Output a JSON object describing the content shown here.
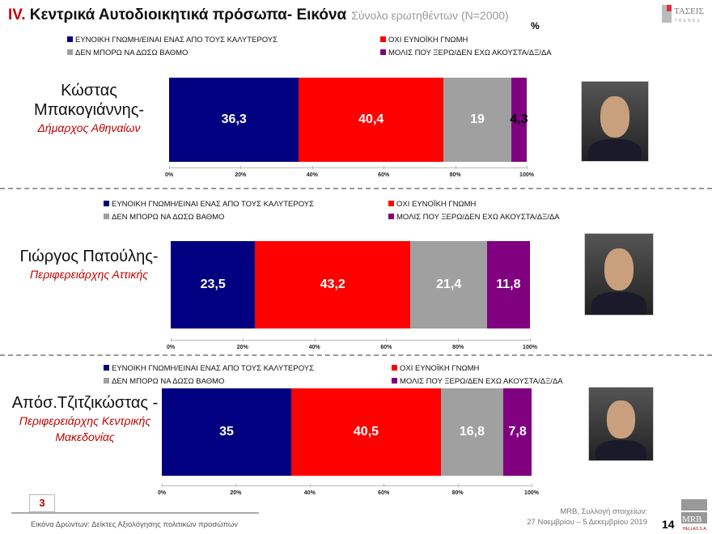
{
  "header": {
    "number": "IV.",
    "title": "Κεντρικά Αυτοδιοικητικά πρόσωπα- Εικόνα",
    "subtitle": "Σύνολο ερωτηθέντων (Ν=2000)",
    "logo_text": "ΤΑΣΕΙΣ",
    "logo_sub": "TRENDS",
    "unit": "%"
  },
  "footer": {
    "box_number": "3",
    "left_text": "Εικόνα Δρώντων: Δείκτες Αξιολόγησης πολιτικών προσώπων",
    "source_line1": "MRB, Συλλογή στοιχείων:",
    "source_line2": "27 Νοεμβρίου – 5 Δεκεμβρίου 2019",
    "page": "14",
    "mrb_logo": "MRB",
    "mrb_sub": "HELLAS S.A."
  },
  "colors": {
    "favorable": "#000080",
    "unfavorable": "#ff0000",
    "cannot_rate": "#a0a0a0",
    "barely_know": "#800080"
  },
  "chart_data": [
    {
      "type": "bar",
      "orientation": "horizontal-stacked",
      "person": "Κώστας Μπακογιάννης-",
      "role": "Δήμαρχος Αθηναίων",
      "legend": [
        "ΕΥΝΟΙΚΗ ΓΝΩΜΗ/ΕΙΝΑΙ ΕΝΑΣ ΑΠΟ ΤΟΥΣ ΚΑΛΥΤΕΡΟΥΣ",
        "ΟΧΙ ΕΥΝΟΪΚΗ ΓΝΩΜΗ",
        "ΔΕΝ ΜΠΟΡΩ ΝΑ ΔΩΣΩ ΒΑΘΜΟ",
        "ΜΟΛΙΣ ΠΟΥ ΞΕΡΩ/ΔΕΝ ΕΧΩ ΑΚΟΥΣΤΑ/ΔΞ/ΔΑ"
      ],
      "values": [
        36.3,
        40.4,
        19,
        4.3
      ],
      "labels": [
        "36,3",
        "40,4",
        "19",
        "4,3"
      ],
      "ticks": [
        "0%",
        "20%",
        "40%",
        "60%",
        "80%",
        "100%"
      ],
      "xlim": [
        0,
        100
      ]
    },
    {
      "type": "bar",
      "orientation": "horizontal-stacked",
      "person": "Γιώργος Πατούλης-",
      "role": "Περιφερειάρχης Αττικής",
      "legend": [
        "ΕΥΝΟΙΚΗ ΓΝΩΜΗ/ΕΙΝΑΙ ΕΝΑΣ ΑΠΟ ΤΟΥΣ ΚΑΛΥΤΕΡΟΥΣ",
        "ΟΧΙ ΕΥΝΟΪΚΗ ΓΝΩΜΗ",
        "ΔΕΝ ΜΠΟΡΩ ΝΑ ΔΩΣΩ ΒΑΘΜΟ",
        "ΜΟΛΙΣ ΠΟΥ ΞΕΡΩ/ΔΕΝ ΕΧΩ ΑΚΟΥΣΤΑ/ΔΞ/ΔΑ"
      ],
      "values": [
        23.5,
        43.2,
        21.4,
        11.8
      ],
      "labels": [
        "23,5",
        "43,2",
        "21,4",
        "11,8"
      ],
      "ticks": [
        "0%",
        "20%",
        "40%",
        "60%",
        "80%",
        "100%"
      ],
      "xlim": [
        0,
        100
      ]
    },
    {
      "type": "bar",
      "orientation": "horizontal-stacked",
      "person": "Απόσ.Τζιτζικώστας -",
      "role": "Περιφερειάρχης Κεντρικής Μακεδονίας",
      "legend": [
        "ΕΥΝΟΙΚΗ ΓΝΩΜΗ/ΕΙΝΑΙ ΕΝΑΣ ΑΠΟ ΤΟΥΣ ΚΑΛΥΤΕΡΟΥΣ",
        "ΟΧΙ ΕΥΝΟΪΚΗ ΓΝΩΜΗ",
        "ΔΕΝ ΜΠΟΡΩ ΝΑ ΔΩΣΩ ΒΑΘΜΟ",
        "ΜΟΛΙΣ ΠΟΥ ΞΕΡΩ/ΔΕΝ ΕΧΩ ΑΚΟΥΣΤΑ/ΔΞ/ΔΑ"
      ],
      "values": [
        35,
        40.5,
        16.8,
        7.8
      ],
      "labels": [
        "35",
        "40,5",
        "16,8",
        "7,8"
      ],
      "ticks": [
        "0%",
        "20%",
        "40%",
        "60%",
        "80%",
        "100%"
      ],
      "xlim": [
        0,
        100
      ]
    }
  ]
}
